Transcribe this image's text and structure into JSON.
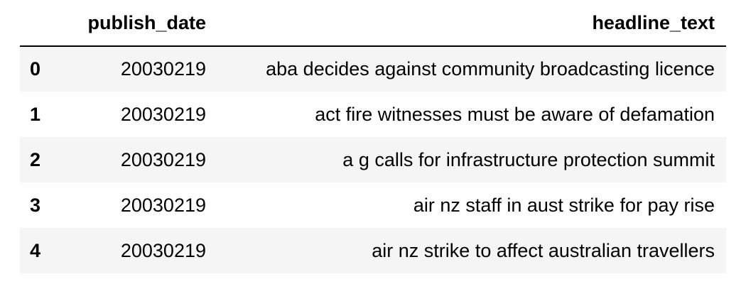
{
  "table": {
    "columns": {
      "index": "",
      "publish_date": "publish_date",
      "headline_text": "headline_text"
    },
    "rows": [
      {
        "index": "0",
        "publish_date": "20030219",
        "headline_text": "aba decides against community broadcasting licence"
      },
      {
        "index": "1",
        "publish_date": "20030219",
        "headline_text": "act fire witnesses must be aware of defamation"
      },
      {
        "index": "2",
        "publish_date": "20030219",
        "headline_text": "a g calls for infrastructure protection summit"
      },
      {
        "index": "3",
        "publish_date": "20030219",
        "headline_text": "air nz staff in aust strike for pay rise"
      },
      {
        "index": "4",
        "publish_date": "20030219",
        "headline_text": "air nz strike to affect australian travellers"
      }
    ]
  },
  "colors": {
    "header_rule": "#000000",
    "striped_row": "#f5f5f5",
    "plain_row": "#ffffff",
    "text": "#000000"
  }
}
